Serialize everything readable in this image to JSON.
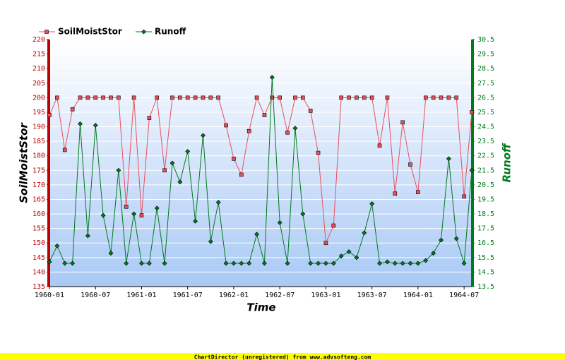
{
  "chart_data": {
    "type": "line",
    "x_label": "Time",
    "y_label": "SoilMoistStor",
    "y2_label": "Runoff",
    "footer": "ChartDirector (unregistered) from www.advsofteng.com",
    "x": [
      "1960-01",
      "1960-02",
      "1960-03",
      "1960-04",
      "1960-05",
      "1960-06",
      "1960-07",
      "1960-08",
      "1960-09",
      "1960-10",
      "1960-11",
      "1960-12",
      "1961-01",
      "1961-02",
      "1961-03",
      "1961-04",
      "1961-05",
      "1961-06",
      "1961-07",
      "1961-08",
      "1961-09",
      "1961-10",
      "1961-11",
      "1961-12",
      "1962-01",
      "1962-02",
      "1962-03",
      "1962-04",
      "1962-05",
      "1962-06",
      "1962-07",
      "1962-08",
      "1962-09",
      "1962-10",
      "1962-11",
      "1962-12",
      "1963-01",
      "1963-02",
      "1963-03",
      "1963-04",
      "1963-05",
      "1963-06",
      "1963-07",
      "1963-08",
      "1963-09",
      "1963-10",
      "1963-11",
      "1963-12",
      "1964-01",
      "1964-02",
      "1964-03",
      "1964-04",
      "1964-05",
      "1964-06",
      "1964-07",
      "1964-08"
    ],
    "xlim": [
      "1960-01",
      "1964-08"
    ],
    "xticks": [
      "1960-01",
      "1960-07",
      "1961-01",
      "1961-07",
      "1962-01",
      "1962-07",
      "1963-01",
      "1963-07",
      "1964-01",
      "1964-07"
    ],
    "ylim": [
      135,
      220
    ],
    "yticks": [
      135,
      140,
      145,
      150,
      155,
      160,
      165,
      170,
      175,
      180,
      185,
      190,
      195,
      200,
      205,
      210,
      215,
      220
    ],
    "y2lim": [
      13.5,
      30.5
    ],
    "y2ticks": [
      13.5,
      14.5,
      15.5,
      16.5,
      17.5,
      18.5,
      19.5,
      20.5,
      21.5,
      22.5,
      23.5,
      24.5,
      25.5,
      26.5,
      27.5,
      28.5,
      29.5,
      30.5
    ],
    "grid": true,
    "legend": "top-left",
    "series": [
      {
        "name": "SoilMoistStor",
        "color": "#e8505a",
        "marker": "square",
        "axis": "y",
        "values": [
          194,
          200,
          182,
          196,
          200,
          200,
          200,
          200,
          200,
          200,
          162.5,
          200,
          159.5,
          193,
          200,
          175,
          200,
          200,
          200,
          200,
          200,
          200,
          200,
          190.5,
          179,
          173.5,
          188.5,
          200,
          194,
          200,
          200,
          188,
          200,
          200,
          195.5,
          181,
          150,
          156,
          200,
          200,
          200,
          200,
          200,
          183.5,
          200,
          167,
          191.5,
          177,
          167.5,
          200,
          200,
          200,
          200,
          200,
          166,
          195
        ]
      },
      {
        "name": "Runoff",
        "color": "#007a1c",
        "marker": "diamond",
        "axis": "y2",
        "values": [
          15.2,
          16.3,
          15.1,
          15.1,
          24.7,
          17.0,
          24.6,
          18.4,
          15.8,
          21.5,
          15.1,
          18.5,
          15.1,
          15.1,
          18.9,
          15.1,
          22.0,
          20.7,
          22.8,
          18.0,
          23.9,
          16.6,
          19.3,
          15.1,
          15.1,
          15.1,
          15.1,
          17.1,
          15.1,
          27.9,
          17.9,
          15.1,
          24.4,
          18.5,
          15.1,
          15.1,
          15.1,
          15.1,
          15.6,
          15.9,
          15.5,
          17.2,
          19.2,
          15.1,
          15.2,
          15.1,
          15.1,
          15.1,
          15.1,
          15.3,
          15.8,
          16.7,
          22.3,
          16.8,
          15.1,
          21.5
        ]
      }
    ]
  }
}
